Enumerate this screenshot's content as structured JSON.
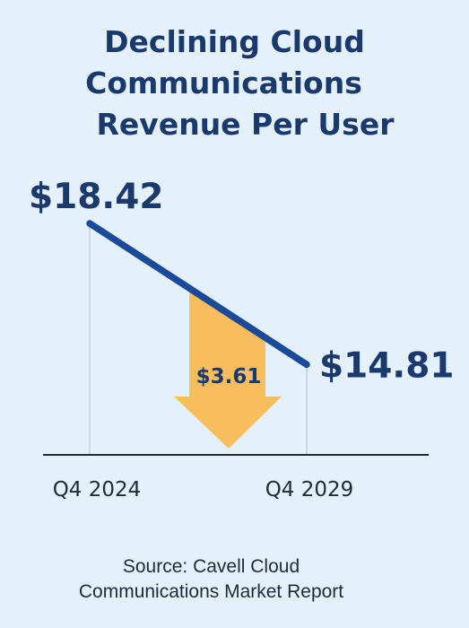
{
  "title_lines": [
    "Declining Cloud",
    "Communications",
    "Revenue Per User"
  ],
  "source_lines": [
    "Source: Cavell Cloud",
    "Communications Market Report"
  ],
  "colors": {
    "background": "#e4f1fb",
    "line": "#1a4a9c",
    "arrow": "#f8bd5c",
    "text_dark": "#1a3a6e",
    "axis": "#1f2a3a",
    "guide": "#b9ccd4"
  },
  "chart_data": {
    "type": "line",
    "title": "Declining Cloud Communications Revenue Per User",
    "x": [
      "Q4 2024",
      "Q4 2029"
    ],
    "values": [
      18.42,
      14.81
    ],
    "value_labels": [
      "$18.42",
      "$14.81"
    ],
    "decline_label": "$3.61",
    "decline_value": 3.61,
    "ylim": [
      12.5,
      19.2
    ],
    "grid": false
  }
}
